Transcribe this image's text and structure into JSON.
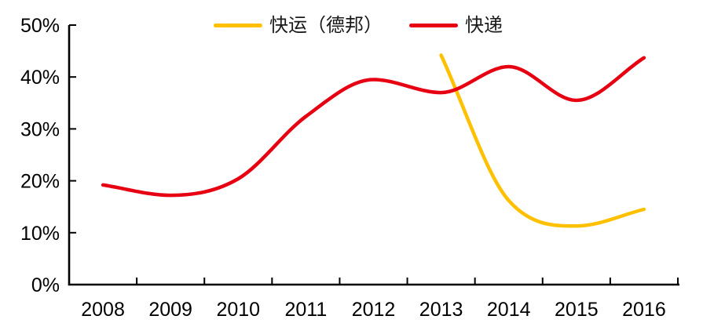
{
  "chart_data": {
    "type": "line",
    "title": "",
    "xlabel": "",
    "ylabel": "",
    "categories": [
      "2008",
      "2009",
      "2010",
      "2011",
      "2012",
      "2013",
      "2014",
      "2015",
      "2016"
    ],
    "y_ticks": [
      "0%",
      "10%",
      "20%",
      "30%",
      "40%",
      "50%"
    ],
    "ylim": [
      0,
      50
    ],
    "grid": false,
    "smooth": true,
    "legend_position": "top-center",
    "axis_color": "#000000",
    "label_color": "#000000",
    "series": [
      {
        "name": "快运（德邦）",
        "color": "#FFC000",
        "values": [
          null,
          null,
          null,
          null,
          null,
          44.2,
          16.2,
          11.3,
          14.5
        ]
      },
      {
        "name": "快递",
        "color": "#E60012",
        "values": [
          19.2,
          17.2,
          20.4,
          32.4,
          39.5,
          37.0,
          42.0,
          35.5,
          43.7
        ]
      }
    ]
  }
}
